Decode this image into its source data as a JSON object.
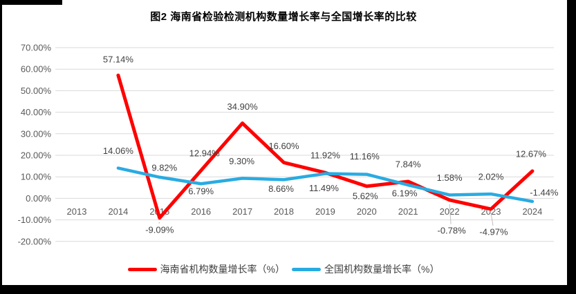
{
  "chart_data": {
    "type": "line",
    "title": "图2 海南省检验检测机构数量增长率与全国增长率的比较",
    "categories": [
      "2013",
      "2014",
      "2015",
      "2016",
      "2017",
      "2018",
      "2019",
      "2020",
      "2021",
      "2022",
      "2023",
      "2024"
    ],
    "ylim": [
      -20,
      70
    ],
    "y_tick_step": 10,
    "y_tick_labels": [
      "70.00%",
      "60.00%",
      "50.00%",
      "40.00%",
      "30.00%",
      "20.00%",
      "10.00%",
      "0.00%",
      "-10.00%",
      "-20.00%"
    ],
    "grid": true,
    "legend_position": "bottom",
    "axis_label_color": "#595959",
    "data_label_color": "#404040",
    "gridline_color": "#D9D9D9",
    "leader_line_color": "#BFBFBF",
    "series": [
      {
        "name": "海南省机构数量增长率（%）",
        "color": "#FF0000",
        "values": [
          null,
          57.14,
          -9.09,
          12.94,
          34.9,
          16.6,
          11.92,
          5.62,
          7.84,
          -0.78,
          -4.97,
          12.67
        ],
        "labels": [
          null,
          "57.14%",
          "-9.09%",
          "12.94%",
          "34.90%",
          "16.60%",
          "11.92%",
          "5.62%",
          "7.84%",
          "-0.78%",
          "-4.97%",
          "12.67%"
        ],
        "label_offsets": [
          null,
          [
            0,
            -23
          ],
          [
            0,
            17
          ],
          [
            5,
            -25
          ],
          [
            0,
            -24
          ],
          [
            0,
            -24
          ],
          [
            0,
            -25
          ],
          [
            -2,
            14
          ],
          [
            0,
            -25
          ],
          [
            3,
            44
          ],
          [
            4,
            33
          ],
          [
            -2,
            -25
          ]
        ],
        "leader_points": [
          2,
          9,
          10
        ]
      },
      {
        "name": "全国机构数量增长率（%）",
        "color": "#29ABE2",
        "values": [
          null,
          14.06,
          9.82,
          6.79,
          9.3,
          8.66,
          11.49,
          11.16,
          6.19,
          1.58,
          2.02,
          -1.44
        ],
        "labels": [
          null,
          "14.06%",
          "9.82%",
          "6.79%",
          "9.30%",
          "8.66%",
          "11.49%",
          "11.16%",
          "6.19%",
          "1.58%",
          "2.02%",
          "-1.44%"
        ],
        "label_offsets": [
          null,
          [
            0,
            -25
          ],
          [
            7,
            -14
          ],
          [
            0,
            11
          ],
          [
            -1,
            -25
          ],
          [
            -4,
            13
          ],
          [
            -2,
            21
          ],
          [
            -3,
            -26
          ],
          [
            -5,
            12
          ],
          [
            0,
            -25
          ],
          [
            0,
            -25
          ],
          [
            17,
            -13
          ]
        ],
        "leader_points": []
      }
    ]
  }
}
